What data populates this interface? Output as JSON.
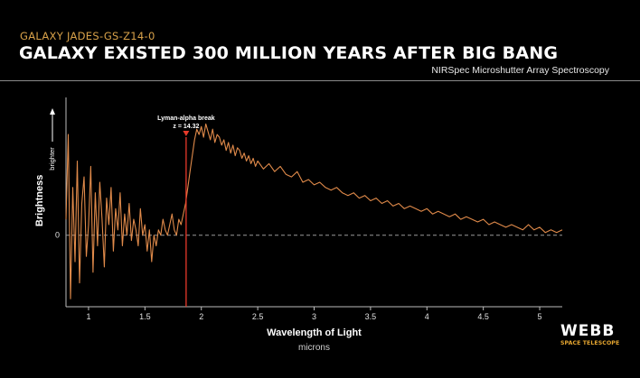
{
  "header": {
    "kicker": "GALAXY JADES-GS-Z14-0",
    "title": "GALAXY EXISTED 300 MILLION YEARS AFTER BIG BANG",
    "instrument": "NIRSpec Microshutter Array Spectroscopy"
  },
  "branding": {
    "name": "WEBB",
    "subtitle": "SPACE TELESCOPE"
  },
  "colors": {
    "background": "#000000",
    "spectrum": "#e08a4a",
    "break_line": "#e83a2a",
    "kicker": "#d9a24a",
    "brand_sub": "#e6a630"
  },
  "chart_data": {
    "type": "line",
    "xlabel": "Wavelength of Light",
    "xunit": "microns",
    "ylabel": "Brightness",
    "y_arrow_label": "brighter",
    "y_zero_label": "0",
    "xlim": [
      0.8,
      5.2
    ],
    "ylim": [
      -1.35,
      2.6
    ],
    "xticks": [
      "1",
      "1.5",
      "2",
      "2.5",
      "3",
      "3.5",
      "4",
      "4.5",
      "5"
    ],
    "xtick_values": [
      1,
      1.5,
      2,
      2.5,
      3,
      3.5,
      4,
      4.5,
      5
    ],
    "zero_line": "dashed",
    "annotation": {
      "label": "Lyman-alpha break",
      "value_label": "z = 14.32",
      "x": 1.865
    },
    "series": [
      {
        "x": [
          0.8,
          0.82,
          0.84,
          0.86,
          0.88,
          0.9,
          0.92,
          0.94,
          0.96,
          0.98,
          1.0,
          1.02,
          1.04,
          1.06,
          1.08,
          1.1,
          1.12,
          1.14,
          1.16,
          1.18,
          1.2,
          1.22,
          1.24,
          1.26,
          1.28,
          1.3,
          1.32,
          1.34,
          1.36,
          1.38,
          1.4,
          1.42,
          1.44,
          1.46,
          1.48,
          1.5,
          1.52,
          1.54,
          1.56,
          1.58,
          1.6,
          1.62,
          1.64,
          1.66,
          1.68,
          1.7,
          1.72,
          1.74,
          1.76,
          1.78,
          1.8,
          1.82,
          1.84,
          1.86,
          1.88,
          1.9,
          1.92,
          1.94,
          1.96,
          1.98,
          2.0,
          2.02,
          2.04,
          2.06,
          2.08,
          2.1,
          2.12,
          2.14,
          2.16,
          2.18,
          2.2,
          2.22,
          2.24,
          2.26,
          2.28,
          2.3,
          2.32,
          2.34,
          2.36,
          2.38,
          2.4,
          2.42,
          2.44,
          2.46,
          2.48,
          2.5,
          2.55,
          2.6,
          2.65,
          2.7,
          2.75,
          2.8,
          2.85,
          2.9,
          2.95,
          3.0,
          3.05,
          3.1,
          3.15,
          3.2,
          3.25,
          3.3,
          3.35,
          3.4,
          3.45,
          3.5,
          3.55,
          3.6,
          3.65,
          3.7,
          3.75,
          3.8,
          3.85,
          3.9,
          3.95,
          4.0,
          4.05,
          4.1,
          4.15,
          4.2,
          4.25,
          4.3,
          4.35,
          4.4,
          4.45,
          4.5,
          4.55,
          4.6,
          4.65,
          4.7,
          4.75,
          4.8,
          4.85,
          4.9,
          4.95,
          5.0,
          5.05,
          5.1,
          5.15,
          5.2
        ],
        "y": [
          0.3,
          1.9,
          -1.2,
          0.9,
          -0.5,
          1.4,
          -0.9,
          0.6,
          1.1,
          -0.4,
          0.2,
          1.3,
          -0.7,
          0.8,
          -0.2,
          1.0,
          0.3,
          -0.6,
          0.7,
          0.2,
          0.9,
          -0.3,
          0.5,
          0.1,
          0.8,
          -0.2,
          0.4,
          0.0,
          0.6,
          -0.1,
          0.3,
          0.1,
          -0.2,
          0.5,
          0.0,
          0.2,
          -0.3,
          0.1,
          -0.5,
          0.0,
          -0.2,
          0.1,
          0.0,
          0.3,
          0.1,
          0.0,
          0.2,
          0.4,
          0.1,
          0.0,
          0.3,
          0.2,
          0.4,
          0.6,
          0.9,
          1.2,
          1.5,
          1.8,
          2.0,
          1.9,
          2.05,
          1.85,
          2.1,
          1.95,
          1.8,
          2.0,
          1.75,
          1.9,
          1.85,
          1.7,
          1.8,
          1.6,
          1.75,
          1.55,
          1.7,
          1.5,
          1.65,
          1.6,
          1.45,
          1.55,
          1.4,
          1.5,
          1.35,
          1.45,
          1.3,
          1.4,
          1.25,
          1.35,
          1.2,
          1.3,
          1.15,
          1.1,
          1.2,
          1.0,
          1.05,
          0.95,
          1.0,
          0.9,
          0.85,
          0.9,
          0.8,
          0.75,
          0.8,
          0.7,
          0.75,
          0.65,
          0.7,
          0.6,
          0.65,
          0.55,
          0.6,
          0.5,
          0.55,
          0.5,
          0.45,
          0.5,
          0.4,
          0.45,
          0.4,
          0.35,
          0.4,
          0.3,
          0.35,
          0.3,
          0.25,
          0.3,
          0.2,
          0.25,
          0.2,
          0.15,
          0.2,
          0.15,
          0.1,
          0.2,
          0.1,
          0.15,
          0.05,
          0.1,
          0.05,
          0.1
        ]
      }
    ]
  }
}
